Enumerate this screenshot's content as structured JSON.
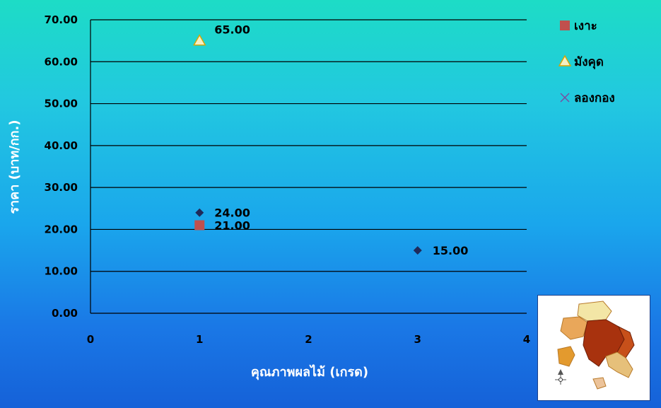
{
  "chart_data": {
    "type": "scatter",
    "xlabel": "คุณภาพผลไม้  (เกรด)",
    "ylabel": "ราคา  (บาท/กก.)",
    "xlim": [
      0,
      4
    ],
    "ylim": [
      0,
      70
    ],
    "x_ticks": [
      "0",
      "1",
      "2",
      "3",
      "4"
    ],
    "y_ticks": [
      "0.00",
      "10.00",
      "20.00",
      "30.00",
      "40.00",
      "50.00",
      "60.00",
      "70.00"
    ],
    "grid": true,
    "legend_position": "right",
    "series": [
      {
        "name": "เงาะ",
        "marker": "square",
        "color": "#c0504d",
        "points": [
          {
            "x": 1,
            "y": 21.0,
            "label": "21.00"
          }
        ]
      },
      {
        "name": "มังคุด",
        "marker": "triangle",
        "color": "#f4efc3",
        "points": [
          {
            "x": 1,
            "y": 65.0,
            "label": "65.00"
          }
        ]
      },
      {
        "name": "ลองกอง",
        "marker": "x",
        "color": "#7a4aa0",
        "points": []
      },
      {
        "name": "",
        "marker": "diamond",
        "color": "#1f2a5a",
        "points": [
          {
            "x": 1,
            "y": 24.0,
            "label": "24.00"
          },
          {
            "x": 3,
            "y": 15.0,
            "label": "15.00"
          }
        ]
      }
    ]
  }
}
